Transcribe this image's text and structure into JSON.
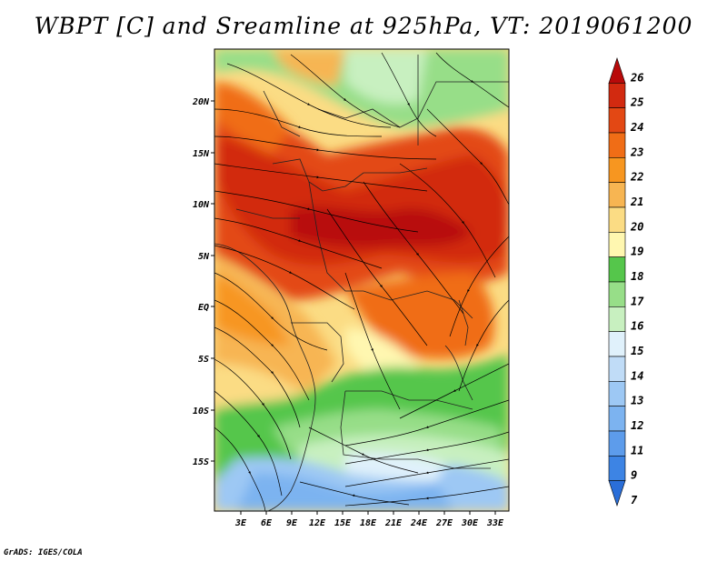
{
  "title": "WBPT [C] and Sreamline at 925hPa, VT: 2019061200",
  "credit": "GrADS: IGES/COLA",
  "map": {
    "variable": "WBPT [C]",
    "level": "925hPa",
    "valid_time": "2019061200",
    "lat_labels": [
      "20N",
      "15N",
      "10N",
      "5N",
      "EQ",
      "5S",
      "10S",
      "15S"
    ],
    "lon_labels": [
      "3E",
      "6E",
      "9E",
      "12E",
      "15E",
      "18E",
      "21E",
      "24E",
      "27E",
      "30E",
      "33E"
    ]
  },
  "colorbar": {
    "labels": [
      "7",
      "9",
      "11",
      "12",
      "13",
      "14",
      "15",
      "16",
      "17",
      "18",
      "19",
      "20",
      "21",
      "22",
      "23",
      "24",
      "25",
      "26"
    ],
    "colors": [
      "#2a6ed8",
      "#3d84e4",
      "#5d9ceb",
      "#7cb3f0",
      "#9dc8f4",
      "#c0dcf7",
      "#e0f1fb",
      "#c8f0c0",
      "#97de88",
      "#55c64b",
      "#fff7b0",
      "#fbdc84",
      "#f7b552",
      "#f79620",
      "#f06d16",
      "#e34814",
      "#d22a10",
      "#b80a0a"
    ]
  }
}
